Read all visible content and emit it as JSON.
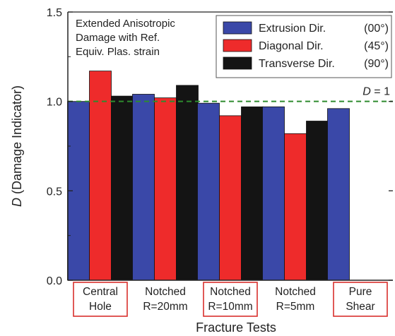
{
  "chart_data": {
    "type": "bar",
    "categories": [
      [
        "Central",
        "Hole"
      ],
      [
        "Notched",
        "R=20mm"
      ],
      [
        "Notched",
        "R=10mm"
      ],
      [
        "Notched",
        "R=5mm"
      ],
      [
        "Pure",
        "Shear"
      ]
    ],
    "highlighted_categories": [
      0,
      2,
      4
    ],
    "series": [
      {
        "name": "Extrusion Dir.",
        "angle": "(00°)",
        "color": "#3a48a8",
        "values": [
          1.0,
          1.04,
          0.99,
          0.97,
          0.96
        ]
      },
      {
        "name": "Diagonal Dir.",
        "angle": "(45°)",
        "color": "#ee2b2b",
        "values": [
          1.17,
          1.02,
          0.92,
          0.82,
          null
        ]
      },
      {
        "name": "Transverse Dir.",
        "angle": "(90°)",
        "color": "#141414",
        "values": [
          1.03,
          1.09,
          0.97,
          0.89,
          null
        ]
      }
    ],
    "xlabel": "Fracture Tests",
    "ylabel_italic": "D",
    "ylabel_rest": " (Damage Indicator)",
    "ylim": [
      0.0,
      1.5
    ],
    "yticks": [
      "0.0",
      "0.5",
      "1.0",
      "1.5"
    ],
    "reference_line": {
      "value": 1.0,
      "label_italic": "D",
      "label_rest": " = 1",
      "color": "#2e8b2e"
    },
    "annotation": [
      "Extended Anisotropic",
      "Damage with Ref.",
      "Equiv. Plas. strain"
    ],
    "legend_position": "top-right",
    "grid": false
  }
}
